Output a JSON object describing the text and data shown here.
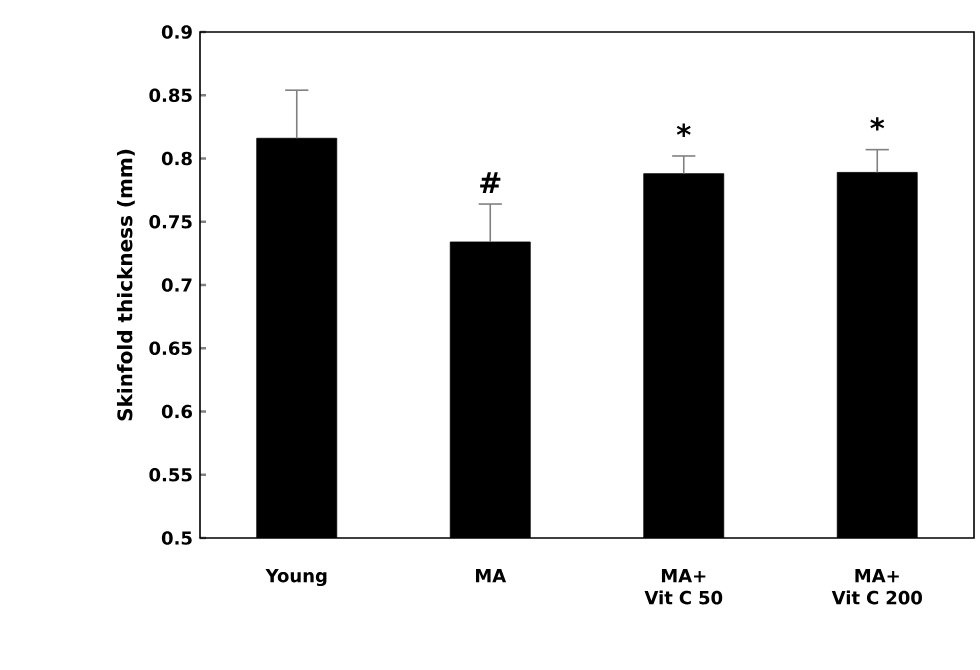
{
  "chart_data": {
    "type": "bar",
    "ylabel": "Skinfold thickness (mm)",
    "categories": [
      "Young",
      "MA",
      "MA+ Vit C 50",
      "MA+ Vit C 200"
    ],
    "values": [
      0.816,
      0.734,
      0.788,
      0.789
    ],
    "errors": [
      [
        0.816,
        0.854
      ],
      [
        0.734,
        0.764
      ],
      [
        0.788,
        0.802
      ],
      [
        0.789,
        0.807
      ]
    ],
    "color": "#000000",
    "ylim": [
      0.5,
      0.9
    ],
    "yticks": [
      0.5,
      0.55,
      0.6,
      0.65,
      0.7,
      0.75,
      0.8,
      0.85,
      0.9
    ],
    "annotations": [
      "#",
      "*",
      "*"
    ]
  }
}
